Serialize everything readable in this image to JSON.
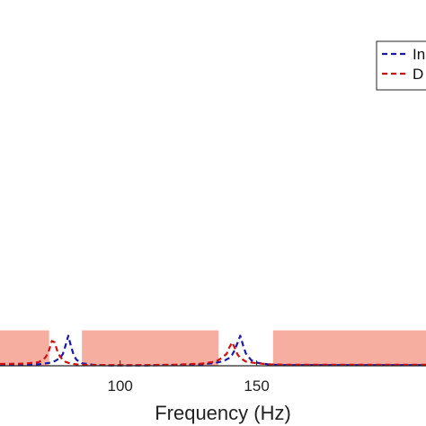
{
  "chart_data": {
    "type": "line",
    "xlabel": "Frequency (Hz)",
    "ylabel": "",
    "xlim": [
      56,
      212
    ],
    "ylim": [
      0,
      1
    ],
    "x_ticks": [
      100,
      150
    ],
    "grid": false,
    "legend_position": "top-right",
    "series": [
      {
        "name": "In",
        "color": "#1a1aaa",
        "style": "dashed",
        "x": [
          56,
          65,
          70,
          74,
          76,
          78,
          79,
          80,
          81,
          82,
          83,
          84,
          86,
          90,
          95,
          100,
          110,
          120,
          130,
          135,
          138,
          140,
          141,
          142,
          143,
          144,
          145,
          146,
          148,
          150,
          155,
          160,
          170,
          180,
          190,
          200,
          212
        ],
        "y": [
          0.002,
          0.003,
          0.004,
          0.008,
          0.013,
          0.022,
          0.033,
          0.057,
          0.085,
          0.055,
          0.03,
          0.017,
          0.007,
          0.003,
          0.001,
          0.001,
          0.001,
          0.002,
          0.004,
          0.008,
          0.014,
          0.022,
          0.031,
          0.045,
          0.065,
          0.085,
          0.058,
          0.035,
          0.016,
          0.009,
          0.003,
          0.002,
          0.002,
          0.002,
          0.002,
          0.002,
          0.002
        ]
      },
      {
        "name": "D",
        "color": "#cc1111",
        "style": "dashed",
        "x": [
          56,
          65,
          70,
          72,
          73,
          74,
          75,
          76,
          77,
          78,
          79,
          80,
          82,
          85,
          90,
          100,
          110,
          120,
          130,
          135,
          137,
          139,
          140,
          141,
          142,
          143,
          144,
          146,
          150,
          155,
          160,
          170,
          180,
          190,
          200,
          212
        ],
        "y": [
          0.005,
          0.006,
          0.01,
          0.018,
          0.028,
          0.045,
          0.07,
          0.066,
          0.042,
          0.026,
          0.017,
          0.011,
          0.006,
          0.003,
          0.002,
          0.002,
          0.002,
          0.003,
          0.006,
          0.012,
          0.021,
          0.034,
          0.052,
          0.066,
          0.05,
          0.032,
          0.022,
          0.012,
          0.007,
          0.004,
          0.003,
          0.003,
          0.003,
          0.003,
          0.003,
          0.003
        ]
      }
    ],
    "shaded_bands": [
      {
        "x0": 56,
        "x1": 74,
        "y0": 0,
        "y1": 0.1,
        "color": "#f4a090"
      },
      {
        "x0": 86,
        "x1": 136,
        "y0": 0,
        "y1": 0.1,
        "color": "#f4a090"
      },
      {
        "x0": 156,
        "x1": 212,
        "y0": 0,
        "y1": 0.1,
        "color": "#f4a090"
      }
    ]
  }
}
